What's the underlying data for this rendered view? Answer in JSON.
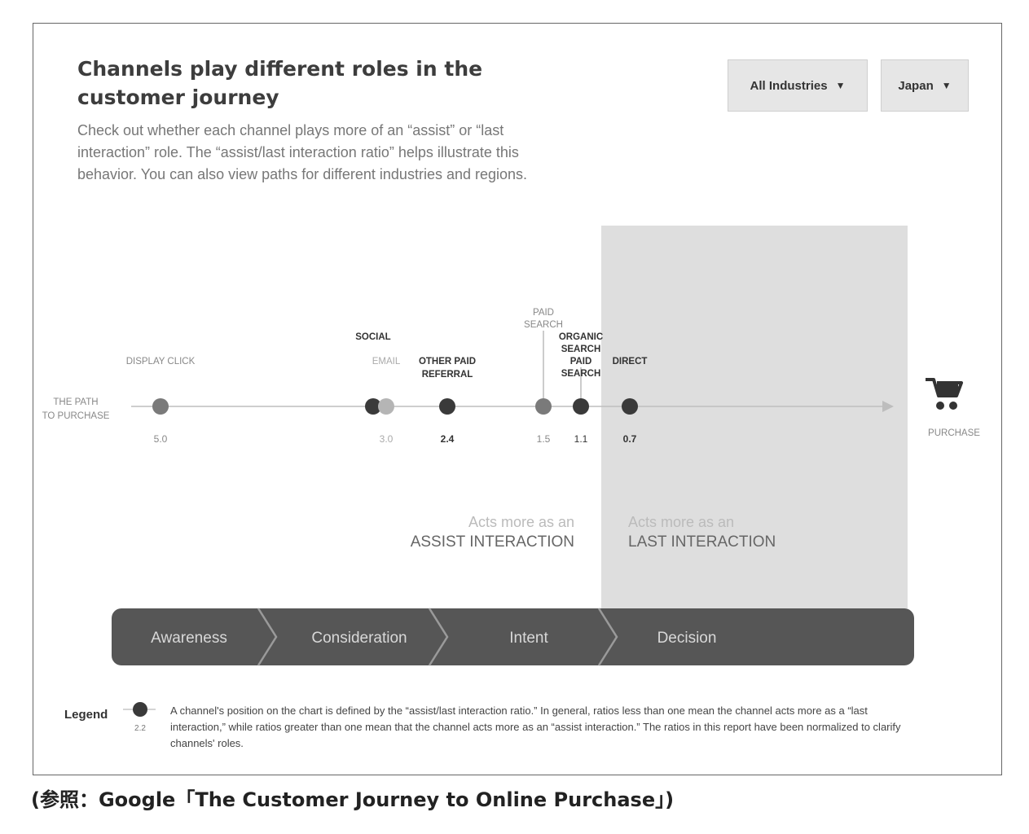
{
  "header": {
    "title": "Channels play different roles in the customer journey",
    "description": "Check out whether each channel plays more of an “assist” or “last interaction” role. The “assist/last interaction ratio” helps illustrate this behavior. You can also view paths for different industries and regions."
  },
  "filters": {
    "industry_label": "All Industries",
    "country_label": "Japan",
    "arrow": "▼"
  },
  "chart_data": {
    "type": "scatter",
    "axis_label": [
      "THE PATH",
      "TO PURCHASE"
    ],
    "end_label": "PURCHASE",
    "x_domain": [
      5.0,
      0.7
    ],
    "points": [
      {
        "name": "DISPLAY CLICK",
        "labels": [
          "DISPLAY CLICK"
        ],
        "value": 5.0,
        "value_label": "5.0",
        "tone": "mid",
        "bold": false
      },
      {
        "name": "SOCIAL",
        "labels": [
          "SOCIAL"
        ],
        "value": 3.0,
        "value_label": "",
        "tone": "dark",
        "bold": false
      },
      {
        "name": "EMAIL",
        "labels": [
          "EMAIL"
        ],
        "value": 3.0,
        "value_label": "3.0",
        "tone": "light",
        "bold": false
      },
      {
        "name": "OTHER PAID REFERRAL",
        "labels": [
          "OTHER PAID",
          "REFERRAL"
        ],
        "value": 2.4,
        "value_label": "2.4",
        "tone": "dark",
        "bold": true
      },
      {
        "name": "PAID SEARCH (1.5)",
        "labels": [
          "PAID",
          "SEARCH"
        ],
        "value": 1.5,
        "value_label": "1.5",
        "tone": "mid",
        "bold": false
      },
      {
        "name": "ORGANIC SEARCH / PAID SEARCH",
        "labels": [
          "ORGANIC",
          "SEARCH",
          "PAID",
          "SEARCH"
        ],
        "value": 1.1,
        "value_label": "1.1",
        "tone": "dark",
        "bold": false
      },
      {
        "name": "DIRECT",
        "labels": [
          "DIRECT"
        ],
        "value": 0.7,
        "value_label": "0.7",
        "tone": "dark",
        "bold": true
      }
    ],
    "zones": {
      "assist": [
        "Acts more as an",
        "ASSIST INTERACTION"
      ],
      "last": [
        "Acts more as an",
        "LAST INTERACTION"
      ]
    },
    "stages": [
      "Awareness",
      "Consideration",
      "Intent",
      "Decision"
    ]
  },
  "legend": {
    "title": "Legend",
    "sample_value": "2.2",
    "text": "A channel's position on the chart is defined by the “assist/last interaction ratio.” In general, ratios less than one mean the channel acts more as a “last interaction,” while ratios greater than one mean that the channel acts more as an “assist interaction.” The ratios in this report have been normalized to clarify channels' roles."
  },
  "caption": "(参照：Google「The Customer Journey to Online Purchase」)",
  "colors": {
    "dark": "#3a3a3a",
    "mid": "#7a7a7a",
    "light": "#b5b5b5",
    "stage_bar": "#565656",
    "zone": "#dedede"
  }
}
